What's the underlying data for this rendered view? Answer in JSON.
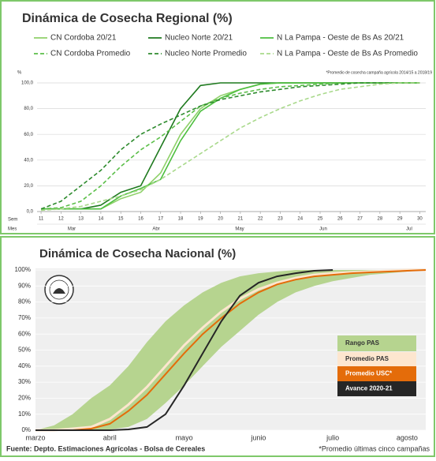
{
  "chart_data": [
    {
      "type": "line",
      "title": "Dinámica de Cosecha Regional (%)",
      "note": "*Promedio de cosecha campaña agrícola 2014/15 a 2018/19",
      "y_label": "%",
      "x_label": "Sem",
      "month_label": "Mes",
      "months": [
        "Mar",
        "Abr",
        "May",
        "Jun",
        "Jul"
      ],
      "x": [
        11,
        12,
        13,
        14,
        15,
        16,
        17,
        18,
        19,
        20,
        21,
        22,
        23,
        24,
        25,
        26,
        27,
        28,
        29,
        30
      ],
      "xlim": [
        10.8,
        30.3
      ],
      "ylim": [
        0,
        100
      ],
      "yticks": [
        {
          "value": 0,
          "label": "0,0"
        },
        {
          "value": 20,
          "label": "20,0"
        },
        {
          "value": 40,
          "label": "40,0"
        },
        {
          "value": 60,
          "label": "60,0"
        },
        {
          "value": 80,
          "label": "80,0"
        },
        {
          "value": 100,
          "label": "100,0"
        }
      ],
      "grid": true,
      "series": [
        {
          "name": "CN Cordoba 20/21",
          "color": "#8fd16a",
          "dashed": false,
          "values": [
            2,
            2,
            2,
            2,
            10,
            15,
            30,
            60,
            80,
            90,
            95,
            99,
            100,
            100,
            100,
            100,
            100,
            100,
            100,
            100
          ]
        },
        {
          "name": "Nucleo Norte 20/21",
          "color": "#1f7a1f",
          "dashed": false,
          "values": [
            2,
            2,
            2,
            5,
            15,
            20,
            50,
            80,
            98,
            100,
            100,
            100,
            100,
            100,
            100,
            100,
            100,
            100,
            100,
            100
          ]
        },
        {
          "name": "N La Pampa - Oeste de Bs As 20/21",
          "color": "#4dbf3f",
          "dashed": false,
          "values": [
            2,
            2,
            2,
            2,
            12,
            18,
            25,
            55,
            78,
            88,
            95,
            99,
            100,
            100,
            100,
            100,
            100,
            100,
            100,
            100
          ]
        },
        {
          "name": "CN Cordoba Promedio",
          "color": "#5cbf4a",
          "dashed": true,
          "values": [
            2,
            3,
            8,
            20,
            35,
            48,
            58,
            70,
            82,
            88,
            92,
            95,
            97,
            98,
            99,
            100,
            100,
            100,
            100,
            100
          ]
        },
        {
          "name": "Nucleo Norte  Promedio",
          "color": "#2e8b2e",
          "dashed": true,
          "values": [
            2,
            8,
            20,
            32,
            48,
            60,
            68,
            75,
            82,
            87,
            90,
            93,
            95,
            97,
            98,
            99,
            100,
            100,
            100,
            100
          ]
        },
        {
          "name": "N La Pampa - Oeste de Bs As  Promedio",
          "color": "#a9d98b",
          "dashed": true,
          "values": [
            1,
            2,
            4,
            8,
            12,
            17,
            25,
            35,
            45,
            55,
            65,
            73,
            80,
            86,
            91,
            95,
            97,
            99,
            100,
            100
          ]
        }
      ]
    },
    {
      "type": "band-line",
      "title": "Dinámica de Cosecha Nacional (%)",
      "source": "Fuente: Depto. Estimaciones Agrícolas - Bolsa de Cereales",
      "note": "*Promedio últimas cinco campañas",
      "categories": [
        "marzo",
        null,
        null,
        null,
        "abril",
        null,
        null,
        null,
        "mayo",
        null,
        null,
        null,
        "junio",
        null,
        null,
        null,
        "julio",
        null,
        null,
        null,
        "agosto",
        null
      ],
      "ylim": [
        0,
        100
      ],
      "yticks": [
        {
          "value": 0,
          "label": "0%"
        },
        {
          "value": 10,
          "label": "10%"
        },
        {
          "value": 20,
          "label": "20%"
        },
        {
          "value": 30,
          "label": "30%"
        },
        {
          "value": 40,
          "label": "40%"
        },
        {
          "value": 50,
          "label": "50%"
        },
        {
          "value": 60,
          "label": "60%"
        },
        {
          "value": 70,
          "label": "70%"
        },
        {
          "value": 80,
          "label": "80%"
        },
        {
          "value": 90,
          "label": "90%"
        },
        {
          "value": 100,
          "label": "100%"
        }
      ],
      "grid": true,
      "series": [
        {
          "name": "Rango PAS",
          "color": "#b6d48f",
          "low": [
            0,
            0,
            0,
            0,
            0.5,
            2,
            7,
            17,
            28,
            40,
            52,
            62,
            72,
            80,
            86,
            90,
            93,
            95,
            97,
            98,
            99,
            100
          ],
          "high": [
            0,
            3,
            10,
            20,
            28,
            40,
            55,
            68,
            78,
            86,
            92,
            96,
            98,
            99,
            100,
            100,
            100,
            100,
            100,
            100,
            100,
            100
          ]
        },
        {
          "name": "Promedio PAS",
          "color": "#fde6cf",
          "values": [
            0,
            0,
            1,
            2,
            7,
            16,
            27,
            40,
            53,
            64,
            74,
            82,
            88,
            92,
            95,
            97,
            98,
            98.5,
            99,
            99.5,
            100,
            100
          ]
        },
        {
          "name": "Promedio USC*",
          "color": "#e46c0a",
          "values": [
            0,
            0,
            0,
            1,
            4,
            12,
            22,
            35,
            48,
            60,
            70,
            79,
            86,
            91,
            94,
            96,
            97,
            98,
            98.5,
            99,
            99.5,
            100
          ]
        },
        {
          "name": "Avance 2020-21",
          "color": "#262626",
          "values": [
            0,
            0,
            0,
            0,
            0,
            0.5,
            2,
            10,
            28,
            48,
            68,
            84,
            92,
            96,
            98,
            99.5,
            100,
            null,
            null,
            null,
            null,
            null
          ]
        }
      ]
    }
  ]
}
